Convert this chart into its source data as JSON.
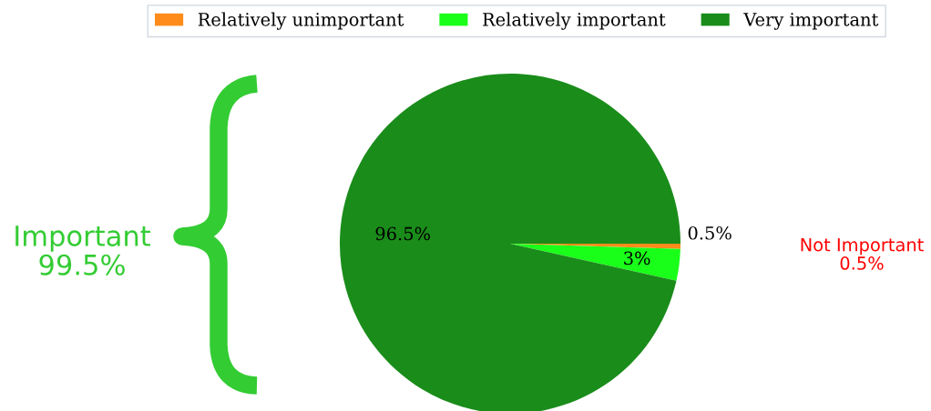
{
  "chart_data": {
    "type": "pie",
    "categories": [
      "Relatively unimportant",
      "Relatively important",
      "Very important"
    ],
    "values": [
      0.5,
      3,
      96.5
    ],
    "colors": [
      "#ff8c1a",
      "#1aff1a",
      "#1a8c1a"
    ],
    "value_labels": [
      "0.5%",
      "3%",
      "96.5%"
    ],
    "legend": "top",
    "annotations": [
      "Important\n99.5%",
      "Not Important\n0.5%"
    ]
  }
}
